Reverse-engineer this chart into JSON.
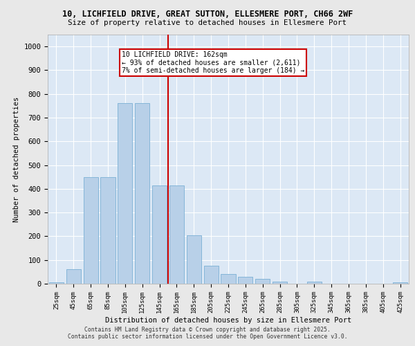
{
  "title_line1": "10, LICHFIELD DRIVE, GREAT SUTTON, ELLESMERE PORT, CH66 2WF",
  "title_line2": "Size of property relative to detached houses in Ellesmere Port",
  "xlabel": "Distribution of detached houses by size in Ellesmere Port",
  "ylabel": "Number of detached properties",
  "categories": [
    "25sqm",
    "45sqm",
    "65sqm",
    "85sqm",
    "105sqm",
    "125sqm",
    "145sqm",
    "165sqm",
    "185sqm",
    "205sqm",
    "225sqm",
    "245sqm",
    "265sqm",
    "285sqm",
    "305sqm",
    "325sqm",
    "345sqm",
    "365sqm",
    "385sqm",
    "405sqm",
    "425sqm"
  ],
  "values": [
    5,
    62,
    450,
    448,
    762,
    762,
    415,
    415,
    205,
    75,
    40,
    30,
    20,
    10,
    0,
    8,
    0,
    0,
    0,
    0,
    5
  ],
  "bar_color": "#b8d0e8",
  "bar_edge_color": "#7aafd4",
  "property_size_label": "10 LICHFIELD DRIVE: 162sqm",
  "annotation_line2": "← 93% of detached houses are smaller (2,611)",
  "annotation_line3": "7% of semi-detached houses are larger (184) →",
  "vline_color": "#cc0000",
  "vline_x": 7.0,
  "annotation_box_color": "#cc0000",
  "ylim": [
    0,
    1050
  ],
  "yticks": [
    0,
    100,
    200,
    300,
    400,
    500,
    600,
    700,
    800,
    900,
    1000
  ],
  "background_color": "#dce8f5",
  "grid_color": "#ffffff",
  "footer_line1": "Contains HM Land Registry data © Crown copyright and database right 2025.",
  "footer_line2": "Contains public sector information licensed under the Open Government Licence v3.0.",
  "fig_width": 6.0,
  "fig_height": 5.0,
  "fig_dpi": 100
}
